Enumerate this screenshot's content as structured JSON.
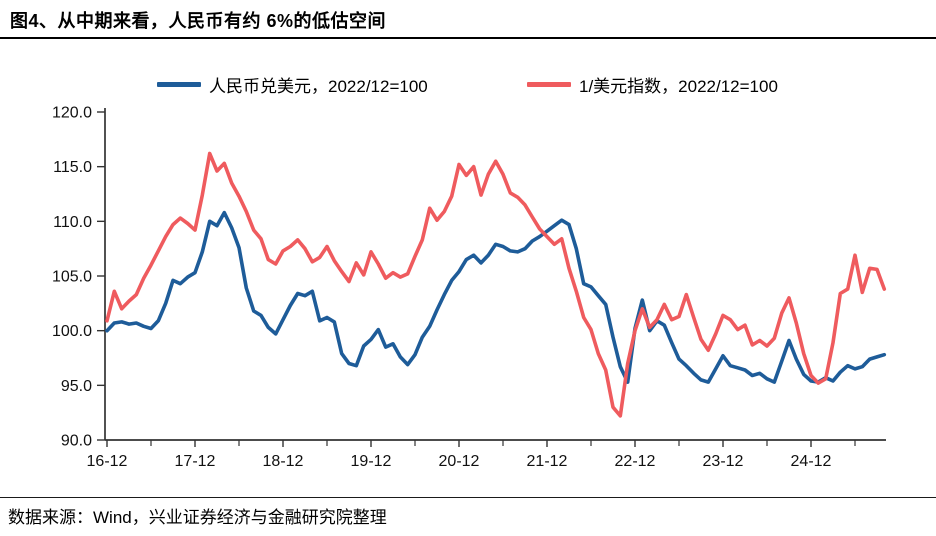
{
  "footer": {
    "source_text": "数据来源：Wind，兴业证券经济与金融研究院整理"
  },
  "chart_data": {
    "type": "line",
    "title": "图4、从中期来看，人民币有约 6%的低估空间",
    "x_start": "2016-12",
    "x_interval": "monthly",
    "x_tick_labels": [
      "16-12",
      "17-12",
      "18-12",
      "19-12",
      "20-12",
      "21-12",
      "22-12",
      "23-12",
      "24-12"
    ],
    "y_tick_labels": [
      "120.0",
      "115.0",
      "110.0",
      "105.0",
      "100.0",
      "95.0",
      "90.0"
    ],
    "ylim": [
      90,
      120
    ],
    "y_tick_step": 5,
    "grid": false,
    "legend_position": "top",
    "axis_color": "#333333",
    "series": [
      {
        "name": "人民币兑美元，2022/12=100",
        "color": "#1e5c99",
        "values": [
          100.0,
          100.7,
          100.8,
          100.6,
          100.7,
          100.4,
          100.2,
          100.9,
          102.5,
          104.6,
          104.3,
          104.9,
          105.3,
          107.2,
          110.0,
          109.6,
          110.8,
          109.4,
          107.6,
          103.9,
          101.8,
          101.4,
          100.3,
          99.7,
          101.0,
          102.3,
          103.4,
          103.2,
          103.6,
          100.9,
          101.2,
          100.8,
          97.9,
          97.0,
          96.8,
          98.6,
          99.2,
          100.1,
          98.5,
          98.8,
          97.6,
          96.9,
          97.8,
          99.4,
          100.4,
          101.9,
          103.3,
          104.6,
          105.4,
          106.5,
          106.9,
          106.2,
          106.9,
          107.9,
          107.7,
          107.3,
          107.2,
          107.5,
          108.2,
          108.6,
          109.1,
          109.6,
          110.1,
          109.7,
          107.5,
          104.3,
          104.0,
          103.2,
          102.4,
          99.4,
          96.7,
          95.3,
          100.2,
          102.8,
          100.0,
          100.9,
          100.5,
          98.9,
          97.4,
          96.8,
          96.1,
          95.5,
          95.3,
          96.5,
          97.7,
          96.8,
          96.6,
          96.4,
          95.9,
          96.1,
          95.6,
          95.3,
          97.2,
          99.1,
          97.4,
          96.0,
          95.4,
          95.3,
          95.7,
          95.4,
          96.2,
          96.8,
          96.5,
          96.7,
          97.4,
          97.6,
          97.8
        ]
      },
      {
        "name": "1/美元指数，2022/12=100",
        "color": "#ef5b5e",
        "values": [
          100.9,
          103.6,
          102.0,
          102.7,
          103.3,
          104.8,
          106.0,
          107.3,
          108.6,
          109.7,
          110.3,
          109.8,
          109.2,
          112.4,
          116.2,
          114.6,
          115.3,
          113.5,
          112.3,
          110.9,
          109.2,
          108.4,
          106.5,
          106.1,
          107.3,
          107.7,
          108.3,
          107.5,
          106.3,
          106.7,
          107.7,
          106.4,
          105.4,
          104.5,
          106.2,
          105.1,
          107.2,
          106.1,
          104.8,
          105.3,
          104.9,
          105.2,
          106.8,
          108.3,
          111.2,
          110.1,
          110.9,
          112.3,
          115.2,
          114.2,
          115.0,
          112.4,
          114.3,
          115.5,
          114.3,
          112.6,
          112.2,
          111.5,
          110.4,
          109.3,
          108.6,
          107.9,
          108.4,
          105.7,
          103.6,
          101.2,
          100.1,
          97.9,
          96.4,
          93.0,
          92.2,
          97.0,
          100.0,
          102.0,
          100.3,
          101.0,
          102.4,
          101.0,
          101.3,
          103.3,
          101.2,
          99.2,
          98.2,
          99.7,
          101.4,
          101.0,
          100.1,
          100.5,
          98.7,
          99.1,
          98.6,
          99.3,
          101.6,
          103.0,
          100.7,
          97.9,
          95.9,
          95.2,
          95.6,
          98.9,
          103.4,
          103.8,
          106.9,
          103.5,
          105.7,
          105.6,
          103.8
        ]
      }
    ]
  }
}
